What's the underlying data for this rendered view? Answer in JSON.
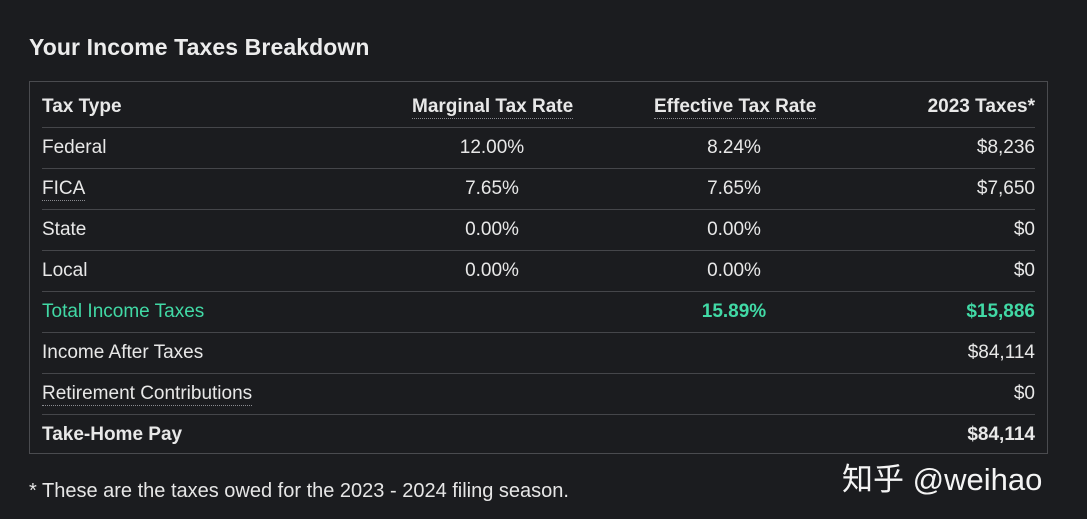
{
  "title": "Your Income Taxes Breakdown",
  "table": {
    "headers": {
      "type": "Tax Type",
      "marginal": "Marginal Tax Rate",
      "effective": "Effective Tax Rate",
      "taxes": "2023 Taxes*"
    },
    "rows": [
      {
        "type": "Federal",
        "marginal": "12.00%",
        "effective": "8.24%",
        "taxes": "$8,236"
      },
      {
        "type": "FICA",
        "marginal": "7.65%",
        "effective": "7.65%",
        "taxes": "$7,650"
      },
      {
        "type": "State",
        "marginal": "0.00%",
        "effective": "0.00%",
        "taxes": "$0"
      },
      {
        "type": "Local",
        "marginal": "0.00%",
        "effective": "0.00%",
        "taxes": "$0"
      }
    ],
    "total": {
      "type": "Total Income Taxes",
      "effective": "15.89%",
      "taxes": "$15,886"
    },
    "after_taxes": {
      "label": "Income After Taxes",
      "value": "$84,114"
    },
    "retirement": {
      "label": "Retirement Contributions",
      "value": "$0"
    },
    "take_home": {
      "label": "Take-Home Pay",
      "value": "$84,114"
    }
  },
  "footnote": "* These are the taxes owed for the 2023 - 2024 filing season.",
  "watermark": "知乎 @weihao",
  "colors": {
    "background": "#1b1c1f",
    "accent_total": "#41d9a5",
    "border": "#4a4b4f"
  }
}
